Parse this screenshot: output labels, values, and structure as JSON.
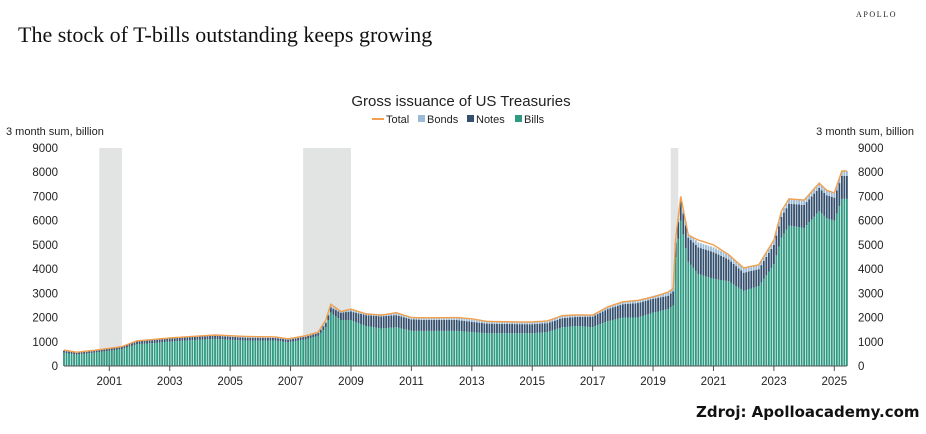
{
  "brand": "APOLLO",
  "headline": "The stock of T-bills outstanding keeps growing",
  "source": "Zdroj: Apolloacademy.com",
  "colors": {
    "total": "#f0a050",
    "bonds": "#9bbad6",
    "notes": "#34506e",
    "bills": "#2e9a82",
    "recession": "#e2e3e3"
  },
  "chart_data": {
    "type": "bar",
    "title": "Gross issuance of US Treasuries",
    "ylabel_left": "3 month sum, billion",
    "ylabel_right": "3 month sum, billion",
    "ylim": [
      0,
      9000
    ],
    "yticks": [
      "0",
      "1000",
      "2000",
      "3000",
      "4000",
      "5000",
      "6000",
      "7000",
      "8000",
      "9000"
    ],
    "xticks": [
      "2001",
      "2003",
      "2005",
      "2007",
      "2009",
      "2011",
      "2013",
      "2015",
      "2017",
      "2019",
      "2021",
      "2023",
      "2025"
    ],
    "stacked": true,
    "legend": [
      "Total",
      "Bonds",
      "Notes",
      "Bills"
    ],
    "legend_position": "top",
    "recessions": [
      [
        "2001-03",
        "2001-11"
      ],
      [
        "2007-12",
        "2009-06"
      ],
      [
        "2020-02",
        "2020-04"
      ]
    ],
    "series": [
      {
        "name": "Bills",
        "points": [
          [
            "2000-01",
            550
          ],
          [
            "2000-06",
            470
          ],
          [
            "2001-01",
            550
          ],
          [
            "2001-12",
            700
          ],
          [
            "2002-06",
            900
          ],
          [
            "2003-01",
            950
          ],
          [
            "2003-06",
            1000
          ],
          [
            "2004-01",
            1050
          ],
          [
            "2005-01",
            1120
          ],
          [
            "2006-01",
            1050
          ],
          [
            "2007-01",
            1050
          ],
          [
            "2007-06",
            980
          ],
          [
            "2008-01",
            1100
          ],
          [
            "2008-06",
            1250
          ],
          [
            "2008-09",
            1600
          ],
          [
            "2008-11",
            2200
          ],
          [
            "2009-03",
            1900
          ],
          [
            "2009-07",
            1900
          ],
          [
            "2010-01",
            1650
          ],
          [
            "2010-07",
            1550
          ],
          [
            "2011-01",
            1600
          ],
          [
            "2011-07",
            1450
          ],
          [
            "2012-01",
            1450
          ],
          [
            "2013-01",
            1450
          ],
          [
            "2013-07",
            1400
          ],
          [
            "2014-01",
            1350
          ],
          [
            "2015-01",
            1350
          ],
          [
            "2015-07",
            1350
          ],
          [
            "2016-01",
            1400
          ],
          [
            "2016-07",
            1600
          ],
          [
            "2017-01",
            1650
          ],
          [
            "2017-07",
            1600
          ],
          [
            "2018-01",
            1850
          ],
          [
            "2018-07",
            2000
          ],
          [
            "2019-01",
            2000
          ],
          [
            "2019-07",
            2200
          ],
          [
            "2020-01",
            2350
          ],
          [
            "2020-03",
            2500
          ],
          [
            "2020-04",
            4500
          ],
          [
            "2020-06",
            6000
          ],
          [
            "2020-09",
            4300
          ],
          [
            "2021-01",
            3800
          ],
          [
            "2021-07",
            3600
          ],
          [
            "2022-01",
            3500
          ],
          [
            "2022-07",
            3100
          ],
          [
            "2023-01",
            3300
          ],
          [
            "2023-07",
            4200
          ],
          [
            "2023-10",
            5300
          ],
          [
            "2024-01",
            5800
          ],
          [
            "2024-07",
            5700
          ],
          [
            "2025-01",
            6400
          ],
          [
            "2025-04",
            6100
          ],
          [
            "2025-07",
            6000
          ],
          [
            "2025-10",
            6900
          ]
        ]
      },
      {
        "name": "Notes",
        "points": [
          [
            "2000-01",
            80
          ],
          [
            "2001-01",
            70
          ],
          [
            "2002-06",
            120
          ],
          [
            "2003-06",
            130
          ],
          [
            "2005-01",
            130
          ],
          [
            "2007-01",
            110
          ],
          [
            "2008-06",
            110
          ],
          [
            "2009-03",
            300
          ],
          [
            "2009-07",
            350
          ],
          [
            "2010-01",
            450
          ],
          [
            "2010-07",
            500
          ],
          [
            "2011-01",
            500
          ],
          [
            "2012-01",
            450
          ],
          [
            "2013-01",
            450
          ],
          [
            "2014-01",
            400
          ],
          [
            "2015-01",
            380
          ],
          [
            "2016-01",
            370
          ],
          [
            "2017-01",
            380
          ],
          [
            "2018-01",
            500
          ],
          [
            "2018-07",
            550
          ],
          [
            "2019-01",
            600
          ],
          [
            "2020-01",
            550
          ],
          [
            "2020-04",
            600
          ],
          [
            "2020-06",
            800
          ],
          [
            "2020-09",
            1000
          ],
          [
            "2021-01",
            1100
          ],
          [
            "2021-07",
            1100
          ],
          [
            "2022-01",
            900
          ],
          [
            "2022-07",
            750
          ],
          [
            "2023-01",
            700
          ],
          [
            "2023-07",
            800
          ],
          [
            "2024-01",
            900
          ],
          [
            "2024-07",
            950
          ],
          [
            "2025-01",
            950
          ],
          [
            "2025-10",
            950
          ]
        ]
      },
      {
        "name": "Bonds",
        "points": [
          [
            "2000-01",
            30
          ],
          [
            "2002-01",
            20
          ],
          [
            "2005-01",
            30
          ],
          [
            "2006-01",
            40
          ],
          [
            "2008-01",
            40
          ],
          [
            "2009-06",
            80
          ],
          [
            "2011-01",
            90
          ],
          [
            "2013-01",
            90
          ],
          [
            "2015-01",
            85
          ],
          [
            "2018-01",
            90
          ],
          [
            "2019-01",
            110
          ],
          [
            "2020-06",
            150
          ],
          [
            "2021-01",
            200
          ],
          [
            "2022-01",
            200
          ],
          [
            "2023-01",
            180
          ],
          [
            "2024-01",
            200
          ],
          [
            "2025-10",
            200
          ]
        ]
      }
    ],
    "total": [
      [
        "2000-01",
        660
      ],
      [
        "2000-06",
        570
      ],
      [
        "2001-01",
        650
      ],
      [
        "2001-12",
        800
      ],
      [
        "2002-06",
        1040
      ],
      [
        "2003-01",
        1100
      ],
      [
        "2003-06",
        1150
      ],
      [
        "2004-01",
        1200
      ],
      [
        "2005-01",
        1280
      ],
      [
        "2006-01",
        1220
      ],
      [
        "2007-01",
        1200
      ],
      [
        "2007-06",
        1120
      ],
      [
        "2008-01",
        1250
      ],
      [
        "2008-06",
        1400
      ],
      [
        "2008-09",
        1900
      ],
      [
        "2008-11",
        2550
      ],
      [
        "2009-03",
        2250
      ],
      [
        "2009-07",
        2350
      ],
      [
        "2010-01",
        2150
      ],
      [
        "2010-07",
        2100
      ],
      [
        "2011-01",
        2200
      ],
      [
        "2011-07",
        2000
      ],
      [
        "2012-01",
        1990
      ],
      [
        "2013-01",
        2000
      ],
      [
        "2013-07",
        1950
      ],
      [
        "2014-01",
        1840
      ],
      [
        "2015-01",
        1820
      ],
      [
        "2015-07",
        1820
      ],
      [
        "2016-01",
        1860
      ],
      [
        "2016-07",
        2080
      ],
      [
        "2017-01",
        2110
      ],
      [
        "2017-07",
        2100
      ],
      [
        "2018-01",
        2440
      ],
      [
        "2018-07",
        2650
      ],
      [
        "2019-01",
        2710
      ],
      [
        "2019-07",
        2850
      ],
      [
        "2020-01",
        3050
      ],
      [
        "2020-03",
        3200
      ],
      [
        "2020-04",
        5300
      ],
      [
        "2020-06",
        7000
      ],
      [
        "2020-09",
        5400
      ],
      [
        "2021-01",
        5200
      ],
      [
        "2021-07",
        5000
      ],
      [
        "2022-01",
        4600
      ],
      [
        "2022-07",
        4050
      ],
      [
        "2023-01",
        4180
      ],
      [
        "2023-07",
        5200
      ],
      [
        "2023-10",
        6400
      ],
      [
        "2024-01",
        6900
      ],
      [
        "2024-07",
        6850
      ],
      [
        "2025-01",
        7550
      ],
      [
        "2025-04",
        7250
      ],
      [
        "2025-07",
        7150
      ],
      [
        "2025-10",
        8050
      ]
    ]
  }
}
